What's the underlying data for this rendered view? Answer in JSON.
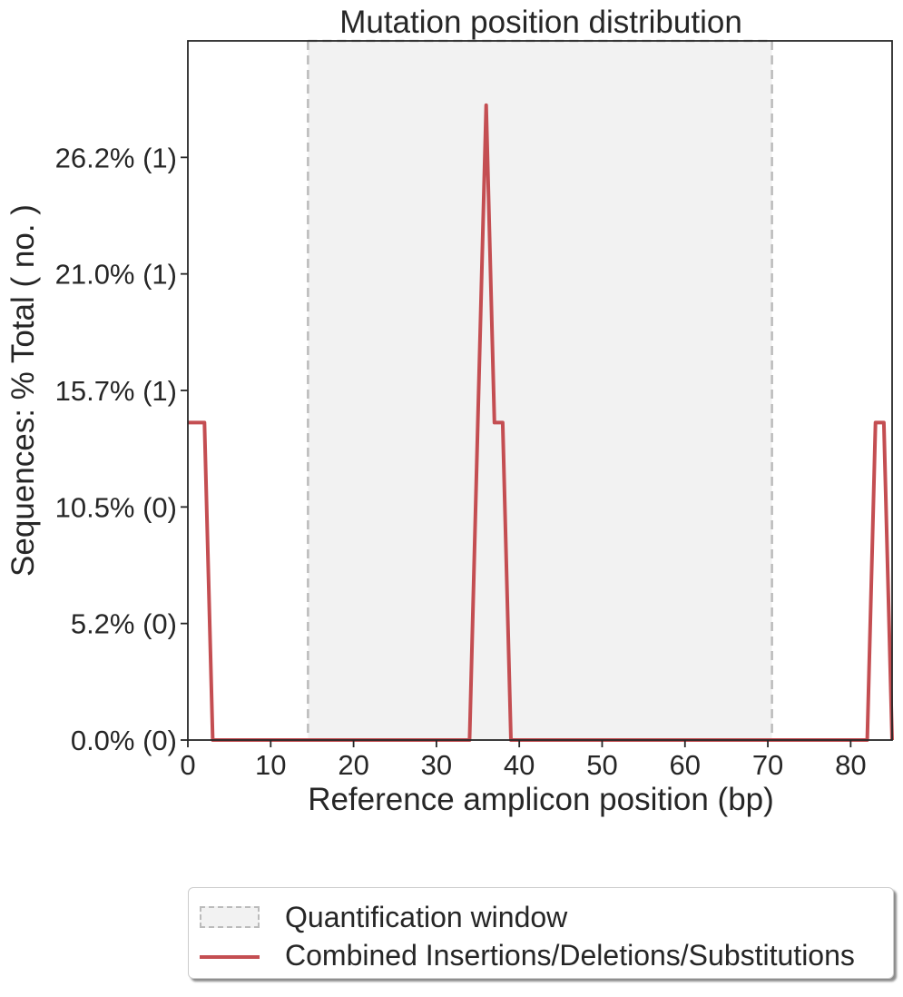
{
  "chart_data": {
    "type": "line",
    "title": "Mutation position distribution",
    "xlabel": "Reference amplicon position (bp)",
    "ylabel": "Sequences: % Total ( no. )",
    "xlim": [
      0,
      85
    ],
    "ylim": [
      0,
      31.5
    ],
    "xticks": [
      0,
      10,
      20,
      30,
      40,
      50,
      60,
      70,
      80
    ],
    "xtick_labels": [
      "0",
      "10",
      "20",
      "30",
      "40",
      "50",
      "60",
      "70",
      "80"
    ],
    "yticks": [
      0,
      5.25,
      10.5,
      15.75,
      21.0,
      26.25
    ],
    "ytick_labels": [
      "0.0% (0)",
      "5.2% (0)",
      "10.5% (0)",
      "15.7% (1)",
      "21.0% (1)",
      "26.2% (1)"
    ],
    "grid": false,
    "quantification_window": {
      "x_start": 14.5,
      "x_end": 70.5,
      "fill": "#f2f2f2",
      "edge": "#bbbbbb"
    },
    "series": [
      {
        "name": "Combined Insertions/Deletions/Substitutions",
        "color": "#c44e52",
        "x": [
          0,
          1,
          2,
          3,
          4,
          34,
          35,
          36,
          37,
          38,
          39,
          40,
          82,
          83,
          84,
          85
        ],
        "y": [
          14.3,
          14.3,
          14.3,
          0,
          0,
          0,
          14.3,
          28.6,
          14.3,
          14.3,
          0,
          0,
          0,
          14.3,
          14.3,
          0
        ]
      }
    ],
    "legend": {
      "placement": "below",
      "entries": [
        {
          "label": "Quantification window",
          "kind": "patch"
        },
        {
          "label": "Combined Insertions/Deletions/Substitutions",
          "kind": "line"
        }
      ]
    }
  }
}
